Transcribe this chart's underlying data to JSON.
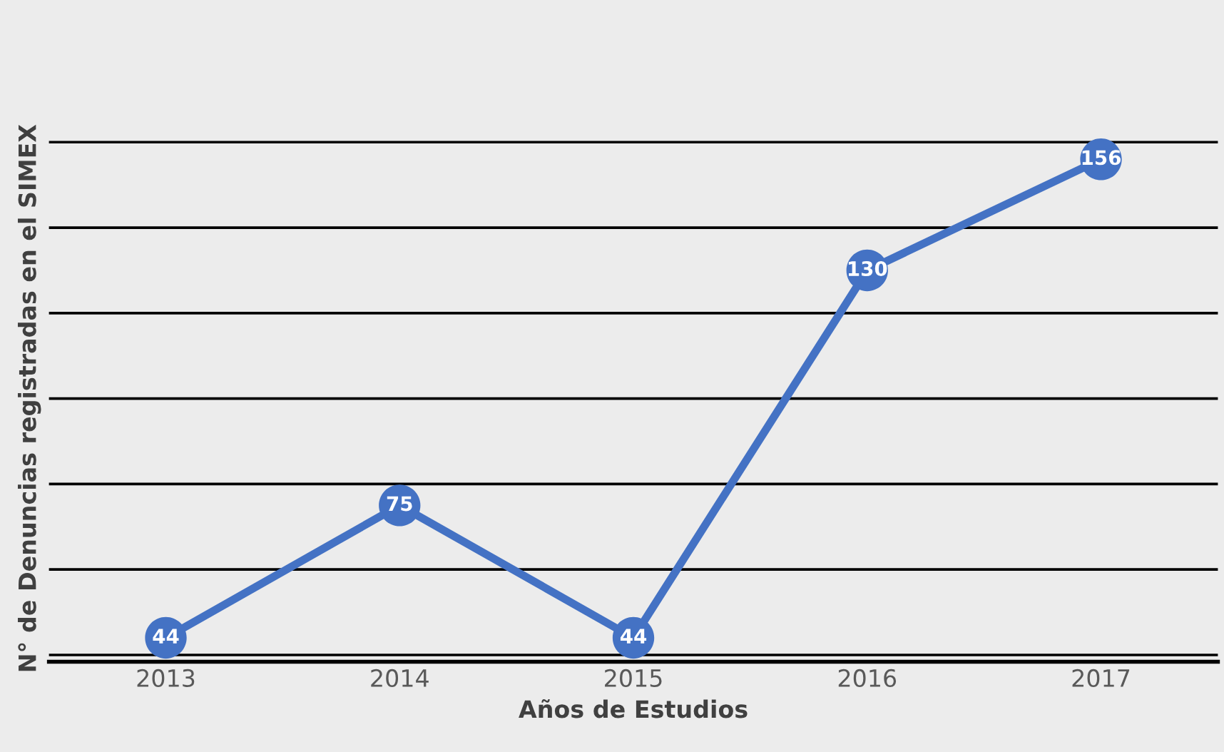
{
  "chart_data": {
    "type": "line",
    "xlabel": "Años de Estudios",
    "ylabel": "N° de Denuncias registradas en el SIMEX",
    "categories": [
      "2013",
      "2014",
      "2015",
      "2016",
      "2017"
    ],
    "series": [
      {
        "color": "#4472c4",
        "values": [
          44,
          75,
          44,
          130,
          156
        ]
      }
    ],
    "tick_labels": "x",
    "grid": "y",
    "marker": "circle",
    "line_style": "solid",
    "data_labels": true
  }
}
